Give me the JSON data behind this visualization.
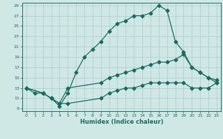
{
  "xlabel": "Humidex (Indice chaleur)",
  "bg_color": "#cfe8e5",
  "grid_color": "#b0cfcc",
  "line_color": "#1a6b5e",
  "xlim": [
    -0.5,
    23.5
  ],
  "ylim": [
    8.5,
    29.5
  ],
  "xticks": [
    0,
    1,
    2,
    3,
    4,
    5,
    6,
    7,
    8,
    9,
    10,
    11,
    12,
    13,
    14,
    15,
    16,
    17,
    18,
    19,
    20,
    21,
    22,
    23
  ],
  "yticks": [
    9,
    11,
    13,
    15,
    17,
    19,
    21,
    23,
    25,
    27,
    29
  ],
  "line1_x": [
    0,
    1,
    2,
    3,
    4,
    5,
    6,
    7,
    8,
    9,
    10,
    11,
    12,
    13,
    14,
    15,
    16,
    17,
    18,
    19,
    20,
    21,
    22,
    23
  ],
  "line1_y": [
    13,
    12,
    12,
    11,
    9.5,
    12,
    16,
    19,
    20.5,
    22,
    24,
    25.5,
    26,
    27,
    27,
    27.5,
    29,
    28,
    22,
    20,
    17,
    16,
    15,
    14
  ],
  "line2_x": [
    0,
    2,
    3,
    4,
    5,
    9,
    10,
    11,
    12,
    13,
    14,
    15,
    16,
    17,
    18,
    19,
    20,
    21,
    22,
    23
  ],
  "line2_y": [
    13,
    12,
    11,
    10,
    13,
    14,
    15,
    15.5,
    16,
    16.5,
    17,
    17.5,
    18,
    18,
    18.5,
    19.5,
    17,
    16,
    15,
    14.5
  ],
  "line3_x": [
    0,
    2,
    3,
    4,
    5,
    9,
    10,
    11,
    12,
    13,
    14,
    15,
    16,
    17,
    18,
    19,
    20,
    21,
    22,
    23
  ],
  "line3_y": [
    13,
    12,
    11,
    10,
    10,
    11,
    12,
    12.5,
    13,
    13,
    13.5,
    14,
    14,
    14,
    14,
    14,
    13,
    13,
    13,
    14
  ]
}
